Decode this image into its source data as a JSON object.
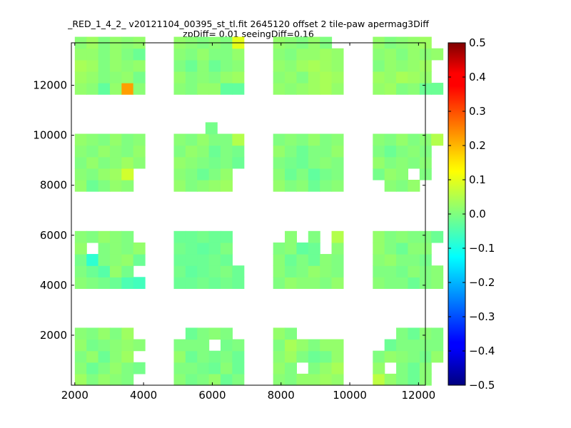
{
  "chart_data": {
    "type": "heatmap",
    "title_line1": "_RED_1_4_2_ v20121104_00395_st_tl.fit 2645120 offset 2 tile-paw apermag3Diff",
    "title_line2": "zpDiff= 0.01 seeingDiff=0.16",
    "xlim": [
      1900,
      12200
    ],
    "ylim": [
      0,
      13700
    ],
    "x_ticks": [
      2000,
      4000,
      6000,
      8000,
      10000,
      12000
    ],
    "y_ticks": [
      2000,
      4000,
      6000,
      8000,
      10000,
      12000
    ],
    "colorbar": {
      "colormap": "jet",
      "range": [
        -0.5,
        0.5
      ],
      "ticks": [
        "0.5",
        "0.4",
        "0.3",
        "0.2",
        "0.1",
        "0.0",
        "−0.1",
        "−0.2",
        "−0.3",
        "−0.4",
        "−0.5"
      ]
    },
    "cell_size": [
      340,
      460
    ],
    "x_columns": [
      2000,
      4880,
      7770,
      10670
    ],
    "y_rows": [
      0,
      3870,
      7760,
      11640
    ],
    "cells_per_tile": [
      6,
      5
    ],
    "tiles": [
      {
        "col": 0,
        "row": 0,
        "values": [
          [
            0.03,
            0.0,
            0.02,
            0.01,
            0.0,
            null
          ],
          [
            0.01,
            -0.02,
            0.0,
            0.02,
            0.0,
            -0.01
          ],
          [
            0.0,
            0.02,
            -0.02,
            0.01,
            0.03,
            null
          ],
          [
            0.02,
            -0.01,
            0.0,
            0.01,
            0.02,
            0.01
          ],
          [
            0.01,
            0.0,
            0.02,
            0.0,
            0.03,
            null
          ]
        ]
      },
      {
        "col": 1,
        "row": 0,
        "values": [
          [
            0.01,
            -0.01,
            0.0,
            0.02,
            -0.02,
            0.0
          ],
          [
            0.0,
            0.0,
            -0.01,
            -0.02,
            0.01,
            -0.02
          ],
          [
            0.02,
            -0.02,
            0.0,
            -0.01,
            0.0,
            -0.02
          ],
          [
            0.0,
            0.0,
            0.0,
            null,
            -0.01,
            0.0
          ],
          [
            null,
            -0.02,
            0.0,
            0.01,
            0.0,
            null
          ]
        ]
      },
      {
        "col": 2,
        "row": 0,
        "values": [
          [
            0.01,
            0.0,
            0.02,
            0.02,
            0.03,
            0.02
          ],
          [
            0.02,
            0.0,
            null,
            0.0,
            0.02,
            0.04
          ],
          [
            0.01,
            0.03,
            0.0,
            -0.02,
            -0.01,
            0.02
          ],
          [
            0.0,
            0.04,
            0.02,
            0.0,
            0.02,
            0.02
          ],
          [
            0.02,
            0.0,
            null,
            null,
            null,
            null
          ]
        ]
      },
      {
        "col": 3,
        "row": 0,
        "values": [
          [
            0.06,
            0.02,
            0.0,
            -0.02,
            0.01,
            null
          ],
          [
            0.02,
            null,
            0.0,
            -0.02,
            0.01,
            null
          ],
          [
            0.0,
            0.02,
            0.01,
            0.0,
            -0.01,
            0.02
          ],
          [
            null,
            -0.02,
            0.0,
            0.0,
            0.0,
            0.0
          ],
          [
            null,
            null,
            0.0,
            -0.02,
            0.01,
            0.0
          ]
        ]
      },
      {
        "col": 0,
        "row": 1,
        "values": [
          [
            0.01,
            0.0,
            -0.01,
            -0.02,
            -0.05,
            -0.06
          ],
          [
            0.0,
            -0.02,
            -0.04,
            0.02,
            -0.01,
            null
          ],
          [
            -0.01,
            -0.08,
            0.0,
            0.01,
            0.02,
            -0.02
          ],
          [
            0.02,
            null,
            0.0,
            0.01,
            0.0,
            0.02
          ],
          [
            0.01,
            0.0,
            0.02,
            0.01,
            0.0,
            null
          ]
        ]
      },
      {
        "col": 1,
        "row": 1,
        "values": [
          [
            -0.02,
            -0.02,
            -0.01,
            -0.02,
            -0.01,
            -0.02
          ],
          [
            -0.01,
            -0.03,
            -0.02,
            -0.01,
            0.0,
            -0.02
          ],
          [
            -0.02,
            -0.02,
            -0.02,
            -0.01,
            -0.02,
            null
          ],
          [
            -0.01,
            -0.02,
            -0.03,
            -0.02,
            0.0,
            null
          ],
          [
            -0.02,
            -0.02,
            -0.01,
            -0.02,
            -0.02,
            null
          ]
        ]
      },
      {
        "col": 2,
        "row": 1,
        "values": [
          [
            0.0,
            0.02,
            0.01,
            0.01,
            0.0,
            0.02
          ],
          [
            0.01,
            -0.01,
            0.0,
            0.02,
            0.01,
            0.0
          ],
          [
            0.01,
            -0.02,
            0.0,
            -0.02,
            0.01,
            0.0
          ],
          [
            0.0,
            0.01,
            -0.03,
            -0.02,
            null,
            0.01
          ],
          [
            null,
            0.01,
            null,
            0.0,
            null,
            0.05
          ]
        ]
      },
      {
        "col": 3,
        "row": 1,
        "values": [
          [
            0.01,
            0.0,
            0.0,
            -0.02,
            0.0,
            0.01
          ],
          [
            0.0,
            0.0,
            -0.01,
            0.01,
            0.0,
            0.01
          ],
          [
            0.01,
            0.02,
            0.0,
            0.0,
            -0.01,
            null
          ],
          [
            0.02,
            0.0,
            -0.02,
            0.01,
            0.01,
            null
          ],
          [
            0.02,
            0.0,
            0.01,
            0.0,
            0.0,
            -0.02
          ]
        ]
      },
      {
        "col": 0,
        "row": 2,
        "values": [
          [
            0.02,
            -0.02,
            0.0,
            0.02,
            0.01,
            null
          ],
          [
            0.01,
            0.0,
            0.02,
            0.03,
            0.08,
            null
          ],
          [
            0.0,
            0.02,
            0.0,
            0.01,
            0.03,
            0.01
          ],
          [
            0.01,
            0.0,
            0.02,
            0.01,
            0.0,
            0.02
          ],
          [
            0.02,
            0.01,
            0.0,
            0.02,
            0.0,
            0.01
          ]
        ]
      },
      {
        "col": 1,
        "row": 2,
        "values": [
          [
            0.02,
            0.0,
            0.01,
            0.02,
            0.03,
            null
          ],
          [
            0.01,
            0.0,
            -0.02,
            0.0,
            0.02,
            null
          ],
          [
            0.02,
            0.01,
            0.0,
            -0.01,
            0.0,
            -0.02
          ],
          [
            0.0,
            0.02,
            0.01,
            -0.02,
            0.0,
            -0.01
          ],
          [
            0.01,
            0.0,
            0.02,
            0.0,
            0.0,
            0.05
          ]
        ]
      },
      {
        "col": 2,
        "row": 2,
        "values": [
          [
            0.02,
            0.0,
            0.01,
            -0.02,
            0.0,
            0.01
          ],
          [
            0.01,
            -0.02,
            0.0,
            -0.03,
            -0.01,
            0.0
          ],
          [
            0.0,
            -0.01,
            -0.02,
            0.0,
            0.01,
            0.0
          ],
          [
            0.02,
            0.0,
            -0.02,
            0.0,
            0.0,
            0.02
          ],
          [
            0.0,
            0.01,
            0.0,
            0.02,
            0.0,
            0.01
          ]
        ]
      },
      {
        "col": 3,
        "row": 2,
        "values": [
          [
            null,
            0.01,
            0.0,
            0.02,
            null,
            null
          ],
          [
            -0.01,
            0.02,
            0.01,
            null,
            0.0,
            null
          ],
          [
            0.02,
            0.0,
            0.01,
            0.0,
            0.01,
            null
          ],
          [
            0.0,
            -0.02,
            0.0,
            0.01,
            0.0,
            null
          ],
          [
            0.01,
            0.0,
            0.02,
            0.0,
            0.01,
            0.05
          ]
        ]
      },
      {
        "col": 0,
        "row": 3,
        "values": [
          [
            0.02,
            0.01,
            -0.03,
            0.02,
            0.22,
            0.01
          ],
          [
            0.03,
            0.02,
            0.0,
            0.01,
            0.02,
            -0.01
          ],
          [
            0.04,
            0.03,
            0.0,
            0.02,
            0.01,
            0.02
          ],
          [
            0.02,
            0.02,
            0.0,
            0.02,
            0.0,
            -0.02
          ],
          [
            0.01,
            0.03,
            0.0,
            0.02,
            0.01,
            0.02
          ]
        ]
      },
      {
        "col": 1,
        "row": 3,
        "values": [
          [
            0.01,
            0.0,
            0.02,
            0.02,
            -0.03,
            -0.03
          ],
          [
            0.02,
            0.0,
            0.01,
            0.0,
            0.02,
            0.03
          ],
          [
            0.0,
            -0.02,
            0.01,
            -0.02,
            0.0,
            0.01
          ],
          [
            0.01,
            0.0,
            0.02,
            0.0,
            0.0,
            0.02
          ],
          [
            0.02,
            0.01,
            0.0,
            0.01,
            0.0,
            0.1
          ]
        ]
      },
      {
        "col": 2,
        "row": 3,
        "values": [
          [
            0.02,
            0.01,
            0.02,
            0.03,
            0.04,
            0.02
          ],
          [
            0.01,
            0.02,
            0.0,
            0.03,
            0.04,
            0.03
          ],
          [
            0.02,
            0.01,
            0.03,
            0.04,
            0.03,
            0.02
          ],
          [
            0.01,
            0.0,
            0.02,
            0.02,
            0.03,
            0.02
          ],
          [
            0.02,
            0.01,
            0.0,
            0.02,
            0.0,
            null
          ]
        ]
      },
      {
        "col": 3,
        "row": 3,
        "values": [
          [
            0.02,
            0.03,
            0.0,
            0.01,
            -0.02,
            -0.02
          ],
          [
            0.03,
            0.02,
            0.04,
            0.03,
            0.02,
            null
          ],
          [
            0.0,
            0.02,
            0.01,
            0.02,
            0.03,
            null
          ],
          [
            0.01,
            0.02,
            0.0,
            0.02,
            0.01,
            0.02
          ],
          [
            0.02,
            0.0,
            0.01,
            0.02,
            0.03,
            null
          ]
        ]
      },
      {
        "col": 1,
        "row": 2.5,
        "values": [
          [
            -0.01
          ]
        ]
      }
    ]
  }
}
